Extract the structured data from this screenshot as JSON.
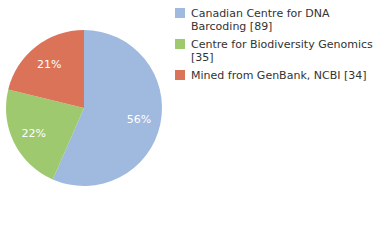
{
  "chart_data": {
    "type": "pie",
    "categories": [
      "Canadian Centre for DNA Barcoding [89]",
      "Centre for Biodiversity Genomics [35]",
      "Mined from GenBank, NCBI [34]"
    ],
    "values": [
      56,
      22,
      21
    ],
    "value_labels": [
      "56%",
      "22%",
      "21%"
    ],
    "colors": [
      "#9fb9df",
      "#9fc96f",
      "#db7358"
    ],
    "data_labels": true,
    "legend": "top-right"
  }
}
